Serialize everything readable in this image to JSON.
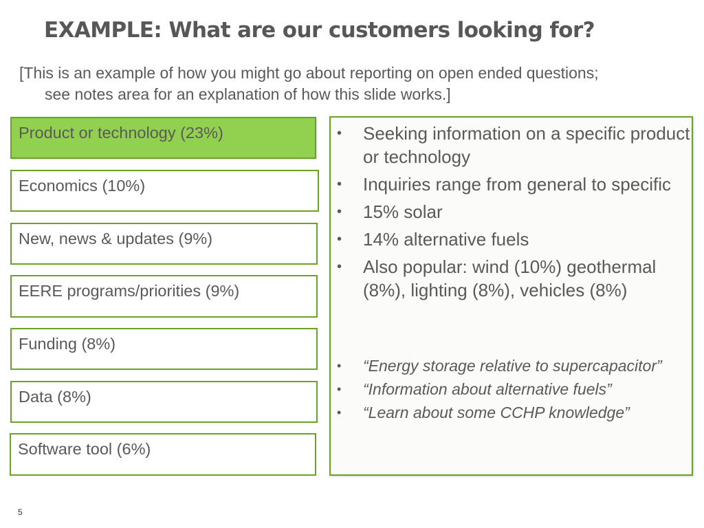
{
  "slide": {
    "title": "EXAMPLE:  What are our customers looking for?",
    "subtitle_line1": "[This is an example of how you might go about reporting on open ended questions;",
    "subtitle_line2": "see notes area for an explanation of how this slide works.]",
    "page_number": "5"
  },
  "categories": [
    {
      "label": "Product or technology (23%)",
      "highlighted": true
    },
    {
      "label": "Economics (10%)",
      "highlighted": false
    },
    {
      "label": "New, news & updates (9%)",
      "highlighted": false
    },
    {
      "label": "EERE programs/priorities (9%)",
      "highlighted": false
    },
    {
      "label": "Funding (8%)",
      "highlighted": false
    },
    {
      "label": "Data (8%)",
      "highlighted": false
    },
    {
      "label": "Software tool (6%)",
      "highlighted": false
    }
  ],
  "details": {
    "bullet_char": "•",
    "bullets": [
      "Seeking information on a specific product or technology",
      "Inquiries range from general to specific",
      "15% solar",
      "14% alternative fuels",
      "Also popular: wind (10%) geothermal (8%), lighting (8%), vehicles (8%)"
    ],
    "quotes": [
      "“Energy storage relative to supercapacitor”",
      "“Information about alternative fuels”",
      "“Learn about some CCHP knowledge”"
    ]
  },
  "colors": {
    "accent_green": "#92d050",
    "border_green": "#6aa321",
    "text_gray": "#595959"
  }
}
